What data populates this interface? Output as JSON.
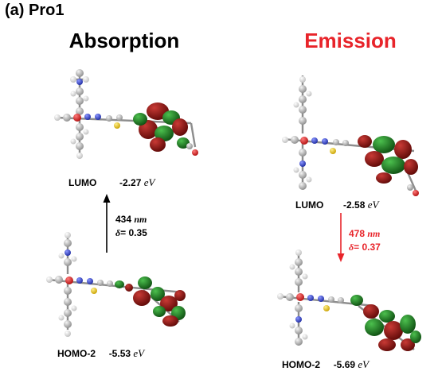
{
  "panel": {
    "label": "(a)",
    "compound": "Pro1"
  },
  "absorption": {
    "title": "Absorption",
    "title_color": "#000000",
    "lumo": {
      "label": "LUMO",
      "energy": "-2.27",
      "unit": "eV"
    },
    "homo": {
      "label": "HOMO-2",
      "energy": "-5.53",
      "unit": "eV"
    },
    "transition": {
      "wavelength": "434",
      "wavelength_unit": "nm",
      "delta_symbol": "δ",
      "delta_value": "= 0.35"
    },
    "arrow_color": "#000000"
  },
  "emission": {
    "title": "Emission",
    "title_color": "#e8242a",
    "lumo": {
      "label": "LUMO",
      "energy": "-2.58",
      "unit": "eV"
    },
    "homo": {
      "label": "HOMO-2",
      "energy": "-5.69",
      "unit": "eV"
    },
    "transition": {
      "wavelength": "478",
      "wavelength_unit": "nm",
      "delta_symbol": "δ",
      "delta_value": "= 0.37"
    },
    "arrow_color": "#e8242a"
  },
  "colors": {
    "orbital_positive": "#8b1512",
    "orbital_negative": "#1f7a22",
    "carbon": "#a8a8a8",
    "hydrogen": "#e4e4e4",
    "nitrogen": "#2b3cc4",
    "oxygen": "#d11a1a",
    "sulfur": "#e6c21a"
  }
}
